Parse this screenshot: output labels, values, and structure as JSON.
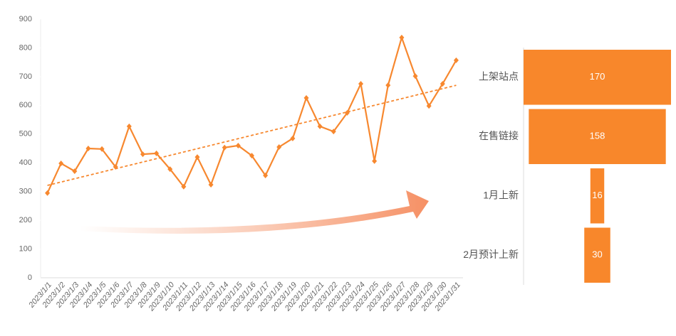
{
  "chart_data": [
    {
      "type": "line",
      "categories": [
        "2023/1/1",
        "2023/1/2",
        "2023/1/3",
        "2023/1/4",
        "2023/1/5",
        "2023/1/6",
        "2023/1/7",
        "2023/1/8",
        "2023/1/9",
        "2023/1/10",
        "2023/1/11",
        "2023/1/12",
        "2023/1/13",
        "2023/1/14",
        "2023/1/15",
        "2023/1/16",
        "2023/1/17",
        "2023/1/18",
        "2023/1/19",
        "2023/1/20",
        "2023/1/21",
        "2023/1/22",
        "2023/1/23",
        "2023/1/24",
        "2023/1/25",
        "2023/1/26",
        "2023/1/27",
        "2023/1/28",
        "2023/1/29",
        "2023/1/30",
        "2023/1/31"
      ],
      "values": [
        295,
        398,
        371,
        450,
        448,
        386,
        527,
        430,
        433,
        378,
        317,
        420,
        324,
        453,
        460,
        425,
        356,
        455,
        485,
        626,
        527,
        509,
        574,
        675,
        406,
        670,
        836,
        702,
        598,
        675,
        757
      ],
      "color": "#f7882f",
      "trendline": true,
      "ylim": [
        0,
        900
      ],
      "yticks": [
        0,
        100,
        200,
        300,
        400,
        500,
        600,
        700,
        800,
        900
      ],
      "grid": false
    },
    {
      "type": "funnel",
      "categories": [
        "上架站点",
        "在售链接",
        "1月上新",
        "2月预计上新"
      ],
      "values": [
        170,
        158,
        16,
        30
      ],
      "color": "#f8872b"
    }
  ]
}
